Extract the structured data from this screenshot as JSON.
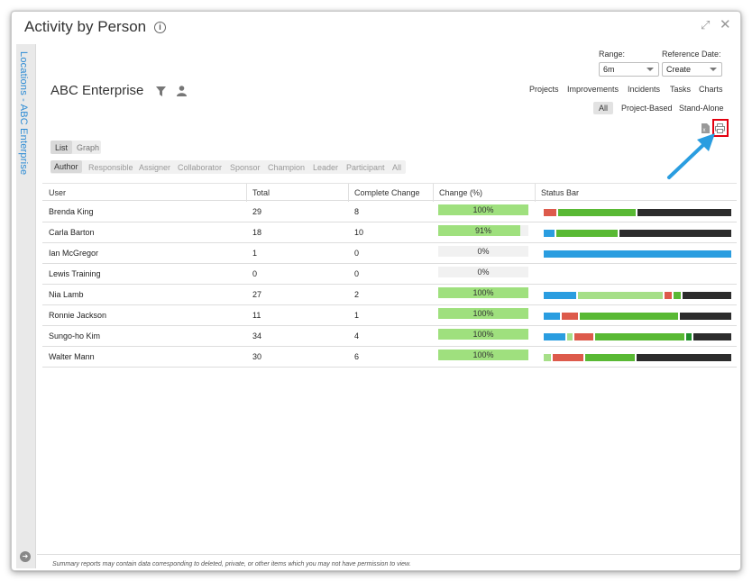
{
  "window": {
    "title": "Activity by Person"
  },
  "sidebar": {
    "label": "Locations - ABC Enterprise"
  },
  "header": {
    "enterprise": "ABC Enterprise"
  },
  "range": {
    "label": "Range:",
    "value": "6m"
  },
  "reference_date": {
    "label": "Reference Date:",
    "value": "Create"
  },
  "top_links": [
    "Projects",
    "Improvements",
    "Incidents",
    "Tasks",
    "Charts"
  ],
  "scope_filter": [
    "All",
    "Project-Based",
    "Stand-Alone"
  ],
  "view_tabs": [
    "List",
    "Graph"
  ],
  "roles": [
    "Author",
    "Responsible",
    "Assigner",
    "Collaborator",
    "Sponsor",
    "Champion",
    "Leader",
    "Participant",
    "All"
  ],
  "table": {
    "headers": [
      "User",
      "Total",
      "Complete Change",
      "Change (%)",
      "Status Bar"
    ],
    "rows": [
      {
        "user": "Brenda King",
        "total": "29",
        "complete": "8",
        "pct_text": "100%",
        "pct": 1.0,
        "status": [
          [
            "#dd5a4b",
            0.07
          ],
          [
            "#59b934",
            0.42
          ],
          [
            "#2c2c2c",
            0.51
          ]
        ]
      },
      {
        "user": "Carla Barton",
        "total": "18",
        "complete": "10",
        "pct_text": "91%",
        "pct": 0.91,
        "status": [
          [
            "#2a9de0",
            0.06
          ],
          [
            "#59b934",
            0.33
          ],
          [
            "#2c2c2c",
            0.61
          ]
        ]
      },
      {
        "user": "Ian McGregor",
        "total": "1",
        "complete": "0",
        "pct_text": "0%",
        "pct": 0.0,
        "status": [
          [
            "#2a9de0",
            1.0
          ]
        ]
      },
      {
        "user": "Lewis Training",
        "total": "0",
        "complete": "0",
        "pct_text": "0%",
        "pct": 0.0,
        "status": []
      },
      {
        "user": "Nia Lamb",
        "total": "27",
        "complete": "2",
        "pct_text": "100%",
        "pct": 1.0,
        "status": [
          [
            "#2a9de0",
            0.18
          ],
          [
            "#a6df88",
            0.47
          ],
          [
            "#dd5a4b",
            0.04
          ],
          [
            "#59b934",
            0.04
          ],
          [
            "#2c2c2c",
            0.27
          ]
        ]
      },
      {
        "user": "Ronnie Jackson",
        "total": "11",
        "complete": "1",
        "pct_text": "100%",
        "pct": 1.0,
        "status": [
          [
            "#2a9de0",
            0.09
          ],
          [
            "#dd5a4b",
            0.09
          ],
          [
            "#59b934",
            0.54
          ],
          [
            "#2c2c2c",
            0.28
          ]
        ]
      },
      {
        "user": "Sungo-ho Kim",
        "total": "34",
        "complete": "4",
        "pct_text": "100%",
        "pct": 1.0,
        "status": [
          [
            "#2a9de0",
            0.12
          ],
          [
            "#a6df88",
            0.03
          ],
          [
            "#dd5a4b",
            0.11
          ],
          [
            "#59b934",
            0.5
          ],
          [
            "#1f8f2a",
            0.03
          ],
          [
            "#2c2c2c",
            0.21
          ]
        ]
      },
      {
        "user": "Walter Mann",
        "total": "30",
        "complete": "6",
        "pct_text": "100%",
        "pct": 1.0,
        "status": [
          [
            "#a6df88",
            0.04
          ],
          [
            "#dd5a4b",
            0.17
          ],
          [
            "#59b934",
            0.27
          ],
          [
            "#2c2c2c",
            0.52
          ]
        ]
      }
    ]
  },
  "footer": {
    "note": "Summary reports may contain data corresponding to deleted, private, or other items which you may not have permission to view."
  },
  "colors": {
    "accent": "#2a8ad4",
    "highlight": "#e3000f",
    "progress": "#9fe07e"
  }
}
